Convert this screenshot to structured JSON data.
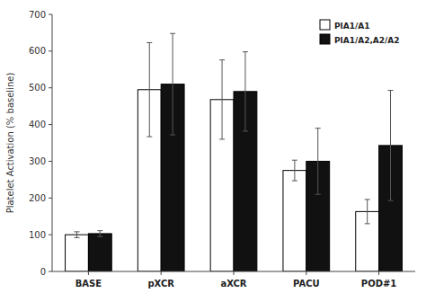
{
  "chart_data": {
    "type": "bar",
    "categories": [
      "BASE",
      "pXCR",
      "aXCR",
      "PACU",
      "POD#1"
    ],
    "series": [
      {
        "name": "PlA1/A1",
        "color": "#ffffff",
        "values": [
          100,
          495,
          468,
          275,
          163
        ],
        "errors": [
          8,
          128,
          108,
          28,
          33
        ]
      },
      {
        "name": "PlA1/A2,A2/A2",
        "color": "#111111",
        "values": [
          103,
          510,
          490,
          300,
          343
        ],
        "errors": [
          8,
          138,
          108,
          90,
          150
        ]
      }
    ],
    "ylabel": "Platelet Activation (% baseline)",
    "ylim": [
      0,
      700
    ],
    "yticks": [
      0,
      100,
      200,
      300,
      400,
      500,
      600,
      700
    ],
    "legend": "upper right",
    "grid": false
  }
}
